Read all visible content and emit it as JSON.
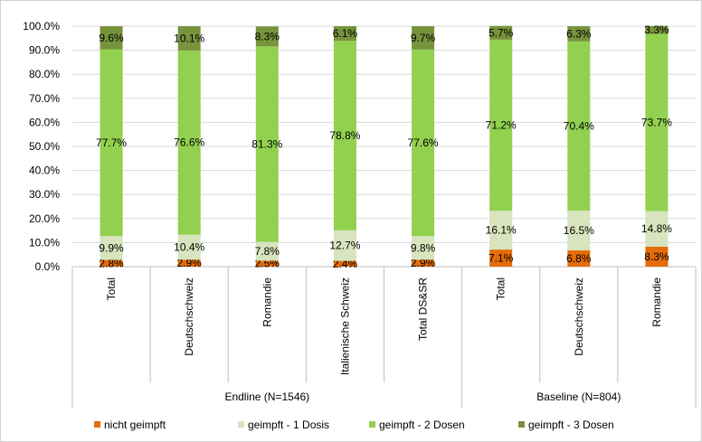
{
  "chart_data": {
    "type": "bar",
    "stacked": true,
    "normalized": true,
    "ylim": [
      0,
      100
    ],
    "y_ticks": [
      "0.0%",
      "10.0%",
      "20.0%",
      "30.0%",
      "40.0%",
      "50.0%",
      "60.0%",
      "70.0%",
      "80.0%",
      "90.0%",
      "100.0%"
    ],
    "y_tick_values": [
      0,
      10,
      20,
      30,
      40,
      50,
      60,
      70,
      80,
      90,
      100
    ],
    "groups": [
      {
        "label": "Endline (N=1546)",
        "count": 5
      },
      {
        "label": "Baseline (N=804)",
        "count": 3
      }
    ],
    "categories": [
      "Total",
      "Deutschschweiz",
      "Romandie",
      "Italienische Schweiz",
      "Total DS&SR",
      "Total",
      "Deutschschweiz",
      "Romandie"
    ],
    "series": [
      {
        "name": "nicht geimpft",
        "color": "#e46c0a",
        "values": [
          2.8,
          2.9,
          2.5,
          2.4,
          2.9,
          7.1,
          6.8,
          8.3
        ],
        "labels": [
          "2.8%",
          "2.9%",
          "2.5%",
          "2.4%",
          "2.9%",
          "7.1%",
          "6.8%",
          "8.3%"
        ]
      },
      {
        "name": "geimpft - 1 Dosis",
        "color": "#d7e4bd",
        "values": [
          9.9,
          10.4,
          7.8,
          12.7,
          9.8,
          16.1,
          16.5,
          14.8
        ],
        "labels": [
          "9.9%",
          "10.4%",
          "7.8%",
          "12.7%",
          "9.8%",
          "16.1%",
          "16.5%",
          "14.8%"
        ]
      },
      {
        "name": "geimpft - 2 Dosen",
        "color": "#92d050",
        "values": [
          77.7,
          76.6,
          81.3,
          78.8,
          77.6,
          71.2,
          70.4,
          73.7
        ],
        "labels": [
          "77.7%",
          "76.6%",
          "81.3%",
          "78.8%",
          "77.6%",
          "71.2%",
          "70.4%",
          "73.7%"
        ]
      },
      {
        "name": "geimpft - 3 Dosen",
        "color": "#77933c",
        "values": [
          9.6,
          10.1,
          8.3,
          6.1,
          9.7,
          5.7,
          6.3,
          3.3
        ],
        "labels": [
          "9.6%",
          "10.1%",
          "8.3%",
          "6.1%",
          "9.7%",
          "5.7%",
          "6.3%",
          "3.3%"
        ]
      }
    ],
    "legend_position": "bottom",
    "grid": true
  }
}
